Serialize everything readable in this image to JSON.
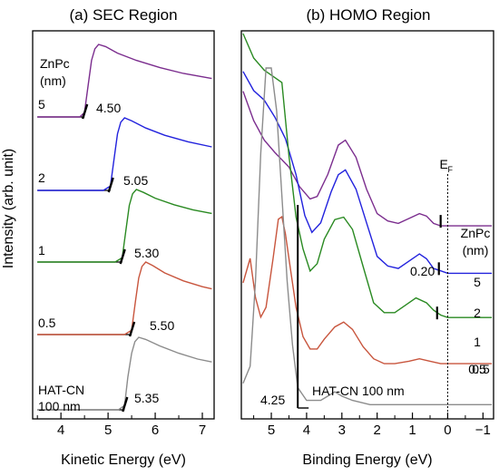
{
  "figure": {
    "ylabel": "Intensity (arb. unit)"
  },
  "chart_data": [
    {
      "type": "line",
      "title": "(a) SEC Region",
      "xlabel": "Kinetic Energy (eV)",
      "xlim": [
        3.4,
        7.25
      ],
      "x_ticks": [
        4,
        5,
        6,
        7
      ],
      "legend_header": "ZnPc\n(nm)",
      "series": [
        {
          "name": "5",
          "cutoff_label": "4.50",
          "cutoff": 4.5,
          "color": "#7b2d8e",
          "points": [
            [
              3.5,
              0.0
            ],
            [
              4.4,
              0.0
            ],
            [
              4.5,
              0.06
            ],
            [
              4.58,
              0.45
            ],
            [
              4.65,
              0.78
            ],
            [
              4.72,
              0.94
            ],
            [
              4.8,
              1.0
            ],
            [
              4.95,
              0.97
            ],
            [
              5.2,
              0.88
            ],
            [
              5.6,
              0.78
            ],
            [
              6.1,
              0.68
            ],
            [
              6.6,
              0.6
            ],
            [
              7.2,
              0.53
            ]
          ]
        },
        {
          "name": "2",
          "cutoff_label": "5.05",
          "cutoff": 5.05,
          "color": "#2222dd",
          "points": [
            [
              3.5,
              0.0
            ],
            [
              4.9,
              0.0
            ],
            [
              5.05,
              0.06
            ],
            [
              5.13,
              0.45
            ],
            [
              5.2,
              0.78
            ],
            [
              5.27,
              0.94
            ],
            [
              5.35,
              1.0
            ],
            [
              5.5,
              0.96
            ],
            [
              5.8,
              0.86
            ],
            [
              6.2,
              0.76
            ],
            [
              6.7,
              0.67
            ],
            [
              7.2,
              0.6
            ]
          ]
        },
        {
          "name": "1",
          "cutoff_label": "5.30",
          "cutoff": 5.3,
          "color": "#2a8a22",
          "points": [
            [
              3.5,
              0.0
            ],
            [
              5.15,
              0.0
            ],
            [
              5.3,
              0.06
            ],
            [
              5.38,
              0.45
            ],
            [
              5.45,
              0.78
            ],
            [
              5.52,
              0.94
            ],
            [
              5.6,
              1.0
            ],
            [
              5.75,
              0.96
            ],
            [
              6.0,
              0.88
            ],
            [
              6.4,
              0.79
            ],
            [
              6.8,
              0.72
            ],
            [
              7.2,
              0.67
            ]
          ]
        },
        {
          "name": "0.5",
          "cutoff_label": "5.50",
          "cutoff": 5.5,
          "color": "#c8553d",
          "points": [
            [
              3.5,
              0.0
            ],
            [
              5.35,
              0.0
            ],
            [
              5.5,
              0.06
            ],
            [
              5.58,
              0.45
            ],
            [
              5.65,
              0.78
            ],
            [
              5.72,
              0.94
            ],
            [
              5.8,
              1.0
            ],
            [
              5.95,
              0.95
            ],
            [
              6.2,
              0.85
            ],
            [
              6.6,
              0.74
            ],
            [
              7.0,
              0.66
            ],
            [
              7.2,
              0.63
            ]
          ]
        },
        {
          "name": "HAT-CN\n100 nm",
          "cutoff_label": "5.35",
          "cutoff": 5.35,
          "color": "#8c8c8c",
          "points": [
            [
              3.5,
              0.0
            ],
            [
              5.22,
              0.0
            ],
            [
              5.35,
              0.06
            ],
            [
              5.42,
              0.45
            ],
            [
              5.5,
              0.78
            ],
            [
              5.57,
              0.94
            ],
            [
              5.65,
              1.0
            ],
            [
              5.8,
              0.97
            ],
            [
              6.1,
              0.88
            ],
            [
              6.5,
              0.78
            ],
            [
              6.9,
              0.7
            ],
            [
              7.2,
              0.66
            ]
          ]
        }
      ]
    },
    {
      "type": "line",
      "title": "(b) HOMO Region",
      "xlabel": "Binding Energy (eV)",
      "xlim": [
        5.85,
        -1.3
      ],
      "x_ticks": [
        5,
        4,
        3,
        2,
        1,
        0,
        -1
      ],
      "x_tick_labels": [
        "5",
        "4",
        "3",
        "2",
        "1",
        "0",
        "−1"
      ],
      "fermi_label": "E",
      "fermi_sub": "F",
      "fermi_x": 0,
      "legend_header": "ZnPc\n(nm)",
      "annotations": [
        {
          "text": "0.20",
          "x": 0.2,
          "target": "ZnPc 5 nm onset"
        },
        {
          "text": "4.25",
          "x": 4.25,
          "target": "HAT-CN onset"
        },
        {
          "text": "HAT-CN 100 nm",
          "x": 2.0
        }
      ],
      "series": [
        {
          "name": "5",
          "color": "#7b2d8e",
          "onset": 0.2,
          "points": [
            [
              5.8,
              0.82
            ],
            [
              5.5,
              0.7
            ],
            [
              5.2,
              0.62
            ],
            [
              4.9,
              0.57
            ],
            [
              4.5,
              0.51
            ],
            [
              4.2,
              0.43
            ],
            [
              3.9,
              0.38
            ],
            [
              3.7,
              0.39
            ],
            [
              3.4,
              0.48
            ],
            [
              3.1,
              0.6
            ],
            [
              2.9,
              0.62
            ],
            [
              2.6,
              0.55
            ],
            [
              2.3,
              0.42
            ],
            [
              2.0,
              0.32
            ],
            [
              1.7,
              0.29
            ],
            [
              1.4,
              0.28
            ],
            [
              1.1,
              0.3
            ],
            [
              0.8,
              0.32
            ],
            [
              0.6,
              0.31
            ],
            [
              0.4,
              0.28
            ],
            [
              0.2,
              0.27
            ],
            [
              0.0,
              0.27
            ],
            [
              -0.6,
              0.27
            ],
            [
              -1.25,
              0.27
            ]
          ]
        },
        {
          "name": "2",
          "color": "#2222dd",
          "onset": 0.25,
          "points": [
            [
              5.8,
              1.05
            ],
            [
              5.5,
              0.97
            ],
            [
              5.2,
              0.93
            ],
            [
              4.9,
              0.86
            ],
            [
              4.6,
              0.77
            ],
            [
              4.3,
              0.62
            ],
            [
              4.05,
              0.45
            ],
            [
              3.85,
              0.38
            ],
            [
              3.6,
              0.42
            ],
            [
              3.3,
              0.55
            ],
            [
              3.1,
              0.62
            ],
            [
              2.9,
              0.64
            ],
            [
              2.6,
              0.56
            ],
            [
              2.3,
              0.42
            ],
            [
              2.0,
              0.28
            ],
            [
              1.7,
              0.24
            ],
            [
              1.4,
              0.23
            ],
            [
              1.1,
              0.26
            ],
            [
              0.8,
              0.29
            ],
            [
              0.6,
              0.27
            ],
            [
              0.4,
              0.23
            ],
            [
              0.2,
              0.22
            ],
            [
              0.0,
              0.21
            ],
            [
              -0.6,
              0.21
            ],
            [
              -1.25,
              0.21
            ]
          ]
        },
        {
          "name": "1",
          "color": "#2a8a22",
          "onset": 0.3,
          "points": [
            [
              5.8,
              1.3
            ],
            [
              5.5,
              1.2
            ],
            [
              5.2,
              1.15
            ],
            [
              4.9,
              1.12
            ],
            [
              4.7,
              1.1
            ],
            [
              4.5,
              0.8
            ],
            [
              4.3,
              0.55
            ],
            [
              4.1,
              0.42
            ],
            [
              3.9,
              0.33
            ],
            [
              3.7,
              0.36
            ],
            [
              3.5,
              0.46
            ],
            [
              3.2,
              0.54
            ],
            [
              2.95,
              0.55
            ],
            [
              2.7,
              0.5
            ],
            [
              2.4,
              0.35
            ],
            [
              2.1,
              0.2
            ],
            [
              1.8,
              0.16
            ],
            [
              1.5,
              0.16
            ],
            [
              1.2,
              0.19
            ],
            [
              0.9,
              0.22
            ],
            [
              0.6,
              0.2
            ],
            [
              0.4,
              0.17
            ],
            [
              0.2,
              0.15
            ],
            [
              0.0,
              0.14
            ],
            [
              -0.6,
              0.14
            ],
            [
              -1.25,
              0.14
            ]
          ]
        },
        {
          "name": "0.5",
          "color": "#c8553d",
          "onset": 0.5,
          "points": [
            [
              5.8,
              0.4
            ],
            [
              5.6,
              0.5
            ],
            [
              5.45,
              0.34
            ],
            [
              5.3,
              0.26
            ],
            [
              5.15,
              0.3
            ],
            [
              4.95,
              0.5
            ],
            [
              4.8,
              0.66
            ],
            [
              4.7,
              0.67
            ],
            [
              4.6,
              0.6
            ],
            [
              4.45,
              0.45
            ],
            [
              4.3,
              0.3
            ],
            [
              4.1,
              0.18
            ],
            [
              3.9,
              0.13
            ],
            [
              3.7,
              0.13
            ],
            [
              3.5,
              0.17
            ],
            [
              3.2,
              0.22
            ],
            [
              2.95,
              0.24
            ],
            [
              2.7,
              0.21
            ],
            [
              2.4,
              0.14
            ],
            [
              2.1,
              0.09
            ],
            [
              1.8,
              0.07
            ],
            [
              1.5,
              0.07
            ],
            [
              1.1,
              0.08
            ],
            [
              0.8,
              0.09
            ],
            [
              0.5,
              0.08
            ],
            [
              0.2,
              0.07
            ],
            [
              -0.6,
              0.07
            ],
            [
              -1.25,
              0.07
            ]
          ]
        },
        {
          "name": "HAT-CN 100 nm",
          "color": "#8c8c8c",
          "onset": 4.25,
          "points": [
            [
              5.8,
              0.06
            ],
            [
              5.6,
              0.1
            ],
            [
              5.45,
              0.3
            ],
            [
              5.3,
              0.6
            ],
            [
              5.15,
              0.8
            ],
            [
              5.0,
              0.8
            ],
            [
              4.85,
              0.7
            ],
            [
              4.7,
              0.5
            ],
            [
              4.55,
              0.3
            ],
            [
              4.4,
              0.15
            ],
            [
              4.25,
              0.05
            ],
            [
              4.0,
              0.02
            ],
            [
              3.6,
              0.02
            ],
            [
              3.4,
              0.03
            ],
            [
              3.2,
              0.04
            ],
            [
              3.0,
              0.03
            ],
            [
              2.7,
              0.02
            ],
            [
              2.2,
              0.01
            ],
            [
              1.5,
              0.01
            ],
            [
              0.5,
              0.01
            ],
            [
              -1.25,
              0.01
            ]
          ]
        }
      ]
    }
  ]
}
